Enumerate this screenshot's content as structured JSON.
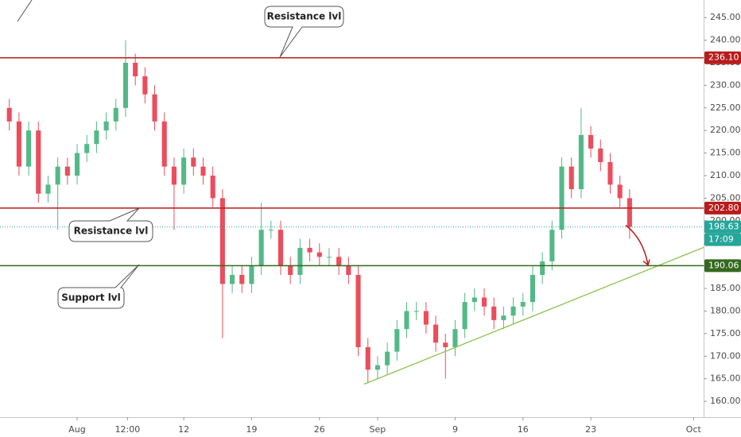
{
  "chart_data": {
    "type": "candlestick",
    "x": [
      -7,
      -6,
      -5,
      -4,
      -3,
      -2,
      -1,
      0,
      1,
      2,
      3,
      4,
      5,
      6,
      7,
      8,
      9,
      10,
      11,
      12,
      13,
      14,
      15,
      16,
      17,
      18,
      19,
      20,
      21,
      22,
      23,
      24,
      25,
      26,
      27,
      28,
      29,
      30,
      31,
      32,
      33,
      34,
      35,
      36,
      37,
      38,
      39,
      40,
      41,
      42,
      43,
      44,
      45,
      46,
      47,
      48,
      49,
      50,
      51,
      52,
      53,
      54,
      55,
      56,
      57
    ],
    "open": [
      225,
      222,
      212,
      220,
      206,
      208,
      212,
      210,
      215,
      217,
      220,
      222,
      225,
      235,
      232,
      228,
      222,
      212,
      208,
      214,
      212,
      210,
      205,
      186,
      188,
      186,
      190,
      198,
      198,
      190,
      188,
      194,
      193,
      192,
      192,
      190,
      188,
      172,
      167,
      168,
      171,
      176,
      180,
      180,
      177,
      173,
      172,
      176,
      182,
      183,
      181,
      178,
      179,
      181,
      182,
      188,
      191,
      198,
      212,
      207,
      219,
      216,
      213,
      208,
      205
    ],
    "high": [
      227,
      224,
      222,
      222,
      210,
      214,
      214,
      217,
      219,
      222,
      224,
      227,
      240,
      237,
      234,
      230,
      224,
      214,
      216,
      216,
      214,
      212,
      207,
      190,
      190,
      192,
      204,
      200,
      200,
      192,
      196,
      196,
      195,
      194,
      194,
      192,
      190,
      174,
      170,
      173,
      178,
      182,
      182,
      182,
      179,
      175,
      178,
      184,
      185,
      185,
      183,
      181,
      183,
      184,
      190,
      193,
      200,
      214,
      214,
      225,
      221,
      218,
      215,
      210,
      207
    ],
    "low": [
      220,
      210,
      210,
      204,
      204,
      198,
      208,
      208,
      213,
      215,
      218,
      220,
      223,
      230,
      226,
      220,
      210,
      198,
      206,
      210,
      208,
      203,
      174,
      184,
      184,
      184,
      188,
      196,
      188,
      186,
      186,
      191,
      190,
      190,
      188,
      186,
      170,
      164,
      165,
      166,
      169,
      174,
      178,
      175,
      171,
      165,
      170,
      174,
      180,
      179,
      176,
      176,
      177,
      179,
      180,
      186,
      189,
      196,
      205,
      205,
      214,
      211,
      206,
      203,
      196
    ],
    "close": [
      222,
      212,
      220,
      206,
      208,
      212,
      210,
      215,
      217,
      220,
      222,
      225,
      235,
      232,
      228,
      222,
      212,
      208,
      214,
      212,
      210,
      205,
      186,
      188,
      186,
      190,
      198,
      198,
      190,
      188,
      194,
      193,
      192,
      192,
      190,
      188,
      172,
      167,
      168,
      171,
      176,
      180,
      180,
      177,
      173,
      172,
      176,
      182,
      183,
      181,
      178,
      179,
      181,
      182,
      188,
      191,
      198,
      212,
      207,
      219,
      216,
      213,
      208,
      205,
      198.63
    ],
    "up_color": "#53b987",
    "down_color": "#eb4d5c",
    "xlim": [
      -7.96,
      64.64
    ],
    "xticks": [
      {
        "value": 0,
        "label": "Aug"
      },
      {
        "value": 5.2,
        "label": "12:00"
      },
      {
        "value": 11,
        "label": "12"
      },
      {
        "value": 18,
        "label": "19"
      },
      {
        "value": 25,
        "label": "26"
      },
      {
        "value": {
          "v": 31
        },
        "label": "Sep"
      },
      {
        "value": 39,
        "label": "9"
      },
      {
        "value": 46,
        "label": "16"
      },
      {
        "value": 53,
        "label": "23"
      },
      {
        "value": 63.6,
        "label": "Oct"
      }
    ],
    "ylim": [
      156.5,
      248.9
    ],
    "yticks": [
      {
        "value": 160,
        "label": "160.00"
      },
      {
        "value": 165,
        "label": "165.00"
      },
      {
        "value": 170,
        "label": "170.00"
      },
      {
        "value": 175,
        "label": "175.00"
      },
      {
        "value": 180,
        "label": "180.00"
      },
      {
        "value": 185,
        "label": "185.00"
      },
      {
        "value": 190,
        "label": "190.00"
      },
      {
        "value": 195,
        "label": "195.00"
      },
      {
        "value": 200,
        "label": "200.00"
      },
      {
        "value": 205,
        "label": "205.00"
      },
      {
        "value": 210,
        "label": "210.00"
      },
      {
        "value": 215,
        "label": "215.00"
      },
      {
        "value": 220,
        "label": "220.00"
      },
      {
        "value": 225,
        "label": "225.00"
      },
      {
        "value": 230,
        "label": "230.00"
      },
      {
        "value": 235,
        "label": "235.00"
      },
      {
        "value": 240,
        "label": "240.00"
      },
      {
        "value": 245,
        "label": "245.00"
      }
    ],
    "grid": false,
    "levels": [
      {
        "value": 236.1,
        "label": "236.10",
        "color": "#b71c1c"
      },
      {
        "value": 202.8,
        "label": "202.80",
        "color": "#b71c1c"
      },
      {
        "value": 190.06,
        "label": "190.06",
        "color": "#33691e"
      }
    ],
    "current_price": {
      "value": 198.63,
      "label": "198.63",
      "countdown": "17:09",
      "color": "#26a69a"
    },
    "trendline": {
      "x": [
        29.6,
        64.64
      ],
      "y": [
        163.8,
        194.1
      ],
      "color": "#8bc34a"
    },
    "arrow": {
      "x": [
        56.6,
        58.9
      ],
      "y": [
        199,
        190.2
      ],
      "color": "#b71c1c"
    },
    "annotations": [
      "Resistance lvl",
      "Resistance lvl",
      "Support lvl"
    ]
  }
}
